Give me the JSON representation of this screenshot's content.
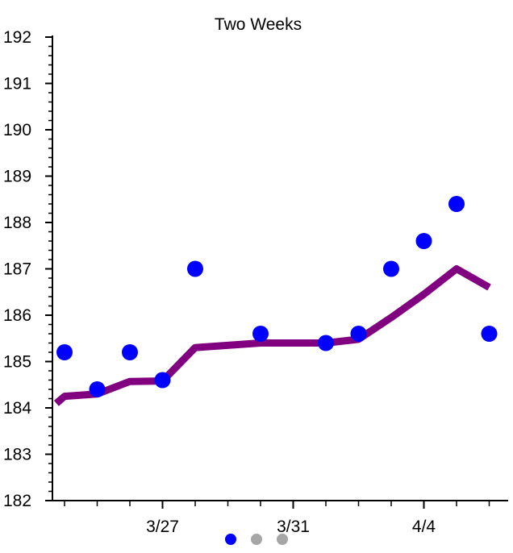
{
  "chart_data": {
    "type": "scatter",
    "title": "Two Weeks",
    "xlabel": "",
    "ylabel": "",
    "ylim": [
      182,
      192
    ],
    "yticks": [
      182,
      183,
      184,
      185,
      186,
      187,
      188,
      189,
      190,
      191,
      192
    ],
    "xticks": [
      {
        "label": "3/27",
        "value": "2014-03-27"
      },
      {
        "label": "3/31",
        "value": "2014-03-31"
      },
      {
        "label": "4/4",
        "value": "2014-04-04"
      }
    ],
    "xlim": [
      "2014-03-24",
      "2014-04-07"
    ],
    "points": [
      {
        "x": "2014-03-24",
        "y": 185.2
      },
      {
        "x": "2014-03-25",
        "y": 184.4
      },
      {
        "x": "2014-03-26",
        "y": 185.2
      },
      {
        "x": "2014-03-27",
        "y": 184.6
      },
      {
        "x": "2014-03-28",
        "y": 187.0
      },
      {
        "x": "2014-03-30",
        "y": 185.6
      },
      {
        "x": "2014-04-01",
        "y": 185.4
      },
      {
        "x": "2014-04-02",
        "y": 185.6
      },
      {
        "x": "2014-04-03",
        "y": 187.0
      },
      {
        "x": "2014-04-04",
        "y": 187.6
      },
      {
        "x": "2014-04-05",
        "y": 188.4
      },
      {
        "x": "2014-04-06",
        "y": 185.6
      }
    ],
    "trend": [
      {
        "x": "2014-03-23T18:00",
        "y": 184.1
      },
      {
        "x": "2014-03-24",
        "y": 184.25
      },
      {
        "x": "2014-03-25",
        "y": 184.3
      },
      {
        "x": "2014-03-26",
        "y": 184.57
      },
      {
        "x": "2014-03-27",
        "y": 184.58
      },
      {
        "x": "2014-03-28",
        "y": 185.3
      },
      {
        "x": "2014-03-30",
        "y": 185.4
      },
      {
        "x": "2014-04-01",
        "y": 185.4
      },
      {
        "x": "2014-04-02",
        "y": 185.48
      },
      {
        "x": "2014-04-03",
        "y": 185.95
      },
      {
        "x": "2014-04-04",
        "y": 186.45
      },
      {
        "x": "2014-04-05",
        "y": 187.0
      },
      {
        "x": "2014-04-06",
        "y": 186.6
      }
    ],
    "point_color": "#0000ff",
    "trend_color": "#800080",
    "axis_color": "#000000",
    "grid": false,
    "legend": "none"
  },
  "pager": {
    "pages": 3,
    "active": 0,
    "active_color": "#0000ff",
    "inactive_color": "#a6a6a6"
  }
}
